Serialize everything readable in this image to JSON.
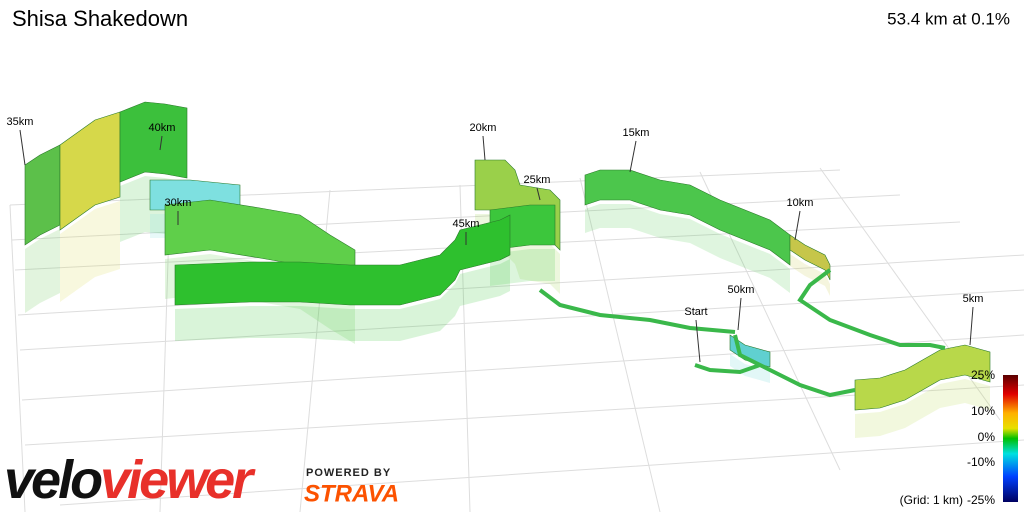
{
  "header": {
    "title": "Shisa Shakedown",
    "summary": "53.4 km at 0.1%"
  },
  "markers": [
    "35km",
    "40km",
    "30km",
    "20km",
    "25km",
    "15km",
    "45km",
    "10km",
    "50km",
    "Start",
    "5km"
  ],
  "legend": {
    "labels": [
      "25%",
      "10%",
      "0%",
      "-10%",
      "-25%"
    ],
    "grid_note": "(Grid: 1 km)"
  },
  "branding": {
    "logo_part1": "velo",
    "logo_part2": "viewer",
    "powered": "POWERED BY",
    "strava": "STRAVA"
  }
}
